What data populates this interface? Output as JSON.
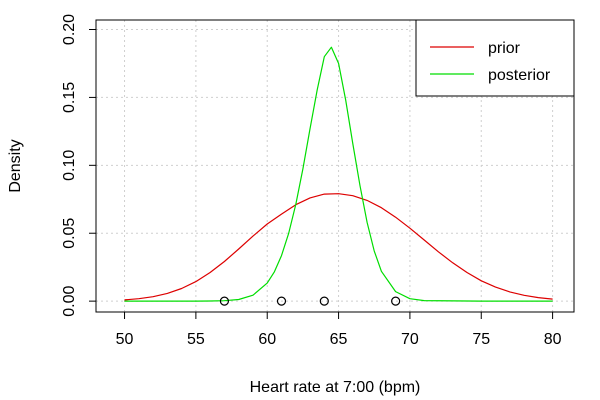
{
  "chart_data": {
    "type": "line",
    "title": "",
    "xlabel": "Heart rate at 7:00 (bpm)",
    "ylabel": "Density",
    "xlim": [
      48,
      81.5
    ],
    "ylim": [
      -0.008,
      0.207
    ],
    "x_ticks": [
      50,
      55,
      60,
      65,
      70,
      75,
      80
    ],
    "y_ticks": [
      0.0,
      0.05,
      0.1,
      0.15,
      0.2
    ],
    "x_tick_labels": [
      "50",
      "55",
      "60",
      "65",
      "70",
      "75",
      "80"
    ],
    "y_tick_labels": [
      "0.00",
      "0.05",
      "0.10",
      "0.15",
      "0.20"
    ],
    "grid": true,
    "legend_position": "top-right",
    "series": [
      {
        "name": "prior",
        "color": "#dd0000",
        "x": [
          50,
          51,
          52,
          53,
          54,
          55,
          56,
          57,
          58,
          59,
          60,
          61,
          62,
          63,
          64,
          65,
          66,
          67,
          68,
          69,
          70,
          71,
          72,
          73,
          74,
          75,
          76,
          77,
          78,
          79,
          80
        ],
        "values": [
          0.0009,
          0.0018,
          0.0033,
          0.0057,
          0.0093,
          0.0144,
          0.0211,
          0.0292,
          0.0384,
          0.0479,
          0.0568,
          0.0641,
          0.071,
          0.076,
          0.0788,
          0.0791,
          0.0776,
          0.0742,
          0.0688,
          0.0618,
          0.0537,
          0.045,
          0.0363,
          0.0282,
          0.0211,
          0.015,
          0.0103,
          0.0068,
          0.0043,
          0.0026,
          0.0015
        ]
      },
      {
        "name": "posterior",
        "color": "#00dd00",
        "x": [
          50,
          55,
          56,
          57,
          58,
          59,
          60,
          60.5,
          61,
          61.5,
          62,
          62.5,
          63,
          63.5,
          64,
          64.5,
          65,
          65.5,
          66,
          66.5,
          67,
          67.5,
          68,
          69,
          70,
          71,
          75,
          80
        ],
        "values": [
          0.0,
          0.0,
          0.0001,
          0.0003,
          0.0012,
          0.0044,
          0.0133,
          0.0216,
          0.0335,
          0.0497,
          0.0712,
          0.0974,
          0.1268,
          0.1555,
          0.18,
          0.187,
          0.175,
          0.148,
          0.116,
          0.085,
          0.058,
          0.037,
          0.022,
          0.007,
          0.0018,
          0.0004,
          0.0,
          0.0
        ]
      }
    ],
    "observations": [
      57,
      61,
      64,
      69
    ],
    "observation_y": 0.0
  }
}
